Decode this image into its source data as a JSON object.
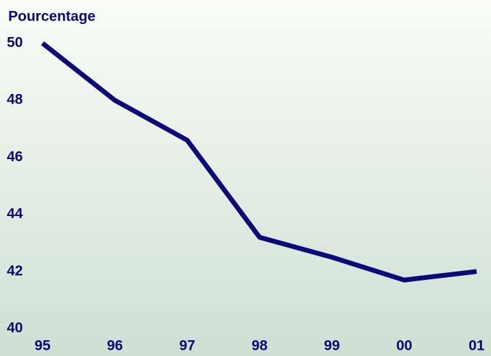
{
  "chart_data": {
    "type": "line",
    "title": "Pourcentage",
    "categories": [
      "95",
      "96",
      "97",
      "98",
      "99",
      "00",
      "01"
    ],
    "series": [
      {
        "name": "Pourcentage",
        "color": "#0a0a78",
        "values": [
          50,
          48,
          46.6,
          43.2,
          42.5,
          41.7,
          42.0
        ]
      }
    ],
    "ylim": [
      40,
      50
    ],
    "yticks": [
      40,
      42,
      44,
      46,
      48,
      50
    ],
    "grid": false
  }
}
